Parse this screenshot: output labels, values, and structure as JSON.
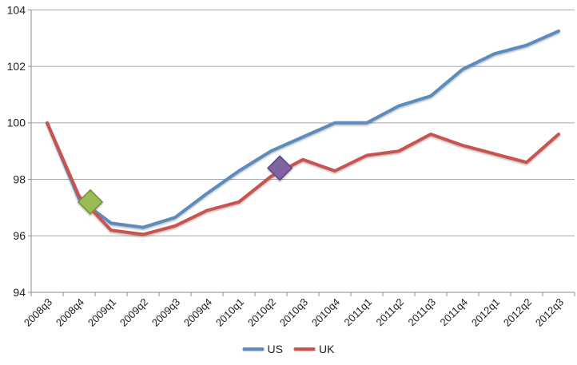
{
  "chart_data": {
    "type": "line",
    "title": "",
    "categories": [
      "2008q3",
      "2008q4",
      "2009q1",
      "2009q2",
      "2009q3",
      "2009q4",
      "2010q1",
      "2010q2",
      "2010q3",
      "2010q4",
      "2011q1",
      "2011q2",
      "2011q3",
      "2011q4",
      "2012q1",
      "2012q2",
      "2012q3"
    ],
    "series": [
      {
        "name": "US",
        "color": "#5B8CBE",
        "values": [
          100.0,
          97.3,
          96.45,
          96.3,
          96.65,
          97.5,
          98.3,
          99.0,
          99.5,
          100.0,
          100.0,
          100.6,
          100.95,
          101.9,
          102.45,
          102.75,
          103.25
        ]
      },
      {
        "name": "UK",
        "color": "#C9534F",
        "values": [
          100.0,
          97.4,
          96.2,
          96.05,
          96.35,
          96.9,
          97.2,
          98.1,
          98.7,
          98.3,
          98.85,
          99.0,
          99.6,
          99.2,
          98.9,
          98.6,
          99.6
        ]
      }
    ],
    "event_markers": [
      {
        "shape": "diamond",
        "fill": "#9BBB59",
        "border": "#75923C",
        "x_index": 1.35,
        "y": 97.2
      },
      {
        "shape": "diamond",
        "fill": "#8064A2",
        "border": "#5F497A",
        "x_index": 7.28,
        "y": 98.4
      }
    ],
    "ylim": [
      94,
      104
    ],
    "ytick_step": 2,
    "ytick_labels": [
      "94",
      "96",
      "98",
      "100",
      "102",
      "104"
    ],
    "grid": true,
    "legend_position": "bottom-center",
    "gridline_color": "#A6A6A6",
    "axis_color": "#8C8C8C",
    "text_color": "#1f1f1f",
    "background": "#FFFFFF"
  }
}
